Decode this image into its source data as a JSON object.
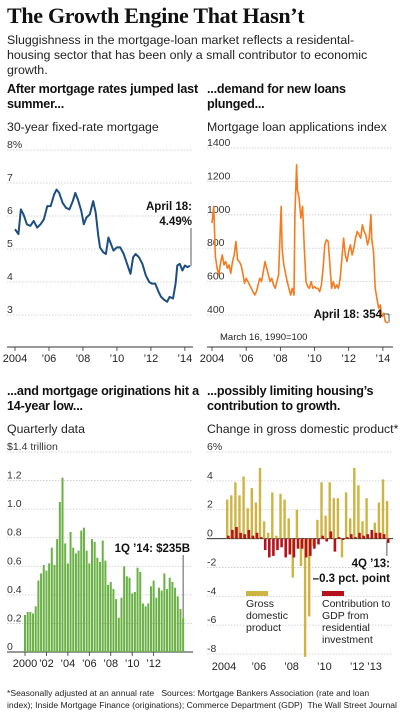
{
  "header": {
    "title": "The Growth Engine That Hasn’t",
    "subtitle": "Sluggishness in the mortgage-loan market reflects a residental-housing sector that has been only a small contributor to economic growth."
  },
  "colors": {
    "rate": "#1c4e80",
    "applications": "#f47c20",
    "originations": "#69b144",
    "gdp": "#cdb443",
    "residential": "#b5121b",
    "grid": "#c8c8c8"
  },
  "footer": {
    "note": "*Seasonally adjusted at an annual rate",
    "sources": "Sources: Mortgage Bankers Association (rate and loan index); Inside Mortgage Finance (originations); Commerce Department (GDP)",
    "credit": "The Wall Street Journal"
  },
  "chart_data": [
    {
      "type": "line",
      "headline": "After mortgage rates jumped last summer...",
      "subtitle": "30-year fixed-rate mortgage",
      "x_ticks": [
        "2004",
        "’06",
        "’08",
        "’10",
        "’12",
        "’14"
      ],
      "y_ticks": [
        "8%",
        "7",
        "6",
        "5",
        "4",
        "3"
      ],
      "ylim": [
        3,
        8
      ],
      "xlim": [
        2004,
        2014.3
      ],
      "annotation": {
        "label": "April 18:",
        "value": "4.49%",
        "x": 2014.3,
        "y": 4.49
      },
      "points": [
        [
          2004.0,
          5.6
        ],
        [
          2004.2,
          5.45
        ],
        [
          2004.35,
          6.2
        ],
        [
          2004.5,
          6.05
        ],
        [
          2004.7,
          5.75
        ],
        [
          2004.9,
          5.7
        ],
        [
          2005.1,
          5.85
        ],
        [
          2005.3,
          5.65
        ],
        [
          2005.5,
          5.75
        ],
        [
          2005.7,
          5.9
        ],
        [
          2005.9,
          6.3
        ],
        [
          2006.1,
          6.3
        ],
        [
          2006.3,
          6.65
        ],
        [
          2006.45,
          6.8
        ],
        [
          2006.6,
          6.7
        ],
        [
          2006.8,
          6.4
        ],
        [
          2007.0,
          6.25
        ],
        [
          2007.2,
          6.2
        ],
        [
          2007.4,
          6.45
        ],
        [
          2007.55,
          6.7
        ],
        [
          2007.7,
          6.5
        ],
        [
          2007.9,
          6.15
        ],
        [
          2008.05,
          5.75
        ],
        [
          2008.2,
          5.95
        ],
        [
          2008.4,
          6.05
        ],
        [
          2008.6,
          6.45
        ],
        [
          2008.75,
          6.1
        ],
        [
          2008.9,
          5.4
        ],
        [
          2009.0,
          5.05
        ],
        [
          2009.2,
          4.9
        ],
        [
          2009.35,
          4.85
        ],
        [
          2009.5,
          5.35
        ],
        [
          2009.65,
          5.15
        ],
        [
          2009.8,
          4.95
        ],
        [
          2010.0,
          5.05
        ],
        [
          2010.2,
          5.05
        ],
        [
          2010.4,
          4.85
        ],
        [
          2010.6,
          4.55
        ],
        [
          2010.8,
          4.25
        ],
        [
          2010.95,
          4.75
        ],
        [
          2011.1,
          4.85
        ],
        [
          2011.3,
          4.75
        ],
        [
          2011.5,
          4.55
        ],
        [
          2011.7,
          4.2
        ],
        [
          2011.9,
          4.0
        ],
        [
          2012.05,
          3.95
        ],
        [
          2012.25,
          3.95
        ],
        [
          2012.45,
          3.7
        ],
        [
          2012.6,
          3.55
        ],
        [
          2012.8,
          3.45
        ],
        [
          2012.95,
          3.4
        ],
        [
          2013.1,
          3.55
        ],
        [
          2013.3,
          3.5
        ],
        [
          2013.45,
          3.95
        ],
        [
          2013.55,
          4.5
        ],
        [
          2013.7,
          4.55
        ],
        [
          2013.85,
          4.35
        ],
        [
          2014.0,
          4.5
        ],
        [
          2014.15,
          4.45
        ],
        [
          2014.3,
          4.49
        ]
      ]
    },
    {
      "type": "line",
      "headline": "...demand for new loans plunged...",
      "subtitle": "Mortgage loan applications index",
      "x_ticks": [
        "2004",
        "’06",
        "’08",
        "’10",
        "’12",
        "’14"
      ],
      "y_ticks": [
        "1400",
        "1200",
        "1000",
        "800",
        "600",
        "400"
      ],
      "ylim": [
        290,
        1400
      ],
      "xlim": [
        2004,
        2014.3
      ],
      "base_note": "March 16, 1990=100",
      "annotation": {
        "label": "April 18: 354",
        "x": 2014.3,
        "y": 354
      },
      "points": [
        [
          2004.0,
          950
        ],
        [
          2004.1,
          1050
        ],
        [
          2004.2,
          750
        ],
        [
          2004.3,
          680
        ],
        [
          2004.4,
          640
        ],
        [
          2004.5,
          710
        ],
        [
          2004.6,
          760
        ],
        [
          2004.7,
          700
        ],
        [
          2004.8,
          720
        ],
        [
          2004.9,
          680
        ],
        [
          2005.0,
          700
        ],
        [
          2005.1,
          650
        ],
        [
          2005.2,
          720
        ],
        [
          2005.3,
          760
        ],
        [
          2005.4,
          840
        ],
        [
          2005.5,
          730
        ],
        [
          2005.6,
          720
        ],
        [
          2005.7,
          700
        ],
        [
          2005.8,
          650
        ],
        [
          2005.9,
          590
        ],
        [
          2006.0,
          620
        ],
        [
          2006.1,
          600
        ],
        [
          2006.2,
          580
        ],
        [
          2006.3,
          560
        ],
        [
          2006.4,
          540
        ],
        [
          2006.5,
          520
        ],
        [
          2006.6,
          540
        ],
        [
          2006.7,
          580
        ],
        [
          2006.8,
          620
        ],
        [
          2006.9,
          600
        ],
        [
          2007.0,
          660
        ],
        [
          2007.1,
          720
        ],
        [
          2007.2,
          680
        ],
        [
          2007.3,
          640
        ],
        [
          2007.4,
          600
        ],
        [
          2007.5,
          620
        ],
        [
          2007.6,
          580
        ],
        [
          2007.7,
          560
        ],
        [
          2007.8,
          600
        ],
        [
          2007.9,
          640
        ],
        [
          2008.0,
          920
        ],
        [
          2008.05,
          1050
        ],
        [
          2008.1,
          800
        ],
        [
          2008.2,
          700
        ],
        [
          2008.3,
          650
        ],
        [
          2008.4,
          600
        ],
        [
          2008.5,
          560
        ],
        [
          2008.6,
          520
        ],
        [
          2008.7,
          560
        ],
        [
          2008.8,
          520
        ],
        [
          2008.85,
          1000
        ],
        [
          2008.95,
          1300
        ],
        [
          2009.0,
          1150
        ],
        [
          2009.1,
          1100
        ],
        [
          2009.2,
          980
        ],
        [
          2009.3,
          1050
        ],
        [
          2009.4,
          800
        ],
        [
          2009.5,
          600
        ],
        [
          2009.6,
          570
        ],
        [
          2009.7,
          560
        ],
        [
          2009.8,
          600
        ],
        [
          2009.9,
          560
        ],
        [
          2010.0,
          570
        ],
        [
          2010.1,
          560
        ],
        [
          2010.2,
          560
        ],
        [
          2010.3,
          540
        ],
        [
          2010.4,
          580
        ],
        [
          2010.5,
          680
        ],
        [
          2010.6,
          820
        ],
        [
          2010.7,
          850
        ],
        [
          2010.8,
          840
        ],
        [
          2010.9,
          700
        ],
        [
          2011.0,
          560
        ],
        [
          2011.1,
          600
        ],
        [
          2011.2,
          560
        ],
        [
          2011.3,
          580
        ],
        [
          2011.4,
          560
        ],
        [
          2011.5,
          620
        ],
        [
          2011.6,
          740
        ],
        [
          2011.7,
          860
        ],
        [
          2011.8,
          760
        ],
        [
          2011.9,
          720
        ],
        [
          2012.0,
          780
        ],
        [
          2012.1,
          820
        ],
        [
          2012.2,
          760
        ],
        [
          2012.3,
          800
        ],
        [
          2012.4,
          860
        ],
        [
          2012.5,
          900
        ],
        [
          2012.6,
          880
        ],
        [
          2012.7,
          860
        ],
        [
          2012.8,
          940
        ],
        [
          2012.9,
          900
        ],
        [
          2013.0,
          880
        ],
        [
          2013.1,
          820
        ],
        [
          2013.2,
          860
        ],
        [
          2013.3,
          1000
        ],
        [
          2013.35,
          850
        ],
        [
          2013.45,
          780
        ],
        [
          2013.55,
          560
        ],
        [
          2013.65,
          500
        ],
        [
          2013.75,
          440
        ],
        [
          2013.85,
          460
        ],
        [
          2013.95,
          390
        ],
        [
          2014.05,
          410
        ],
        [
          2014.15,
          360
        ],
        [
          2014.3,
          354
        ]
      ]
    },
    {
      "type": "bar",
      "headline": "...and mortgage originations hit a 14-year low...",
      "subtitle": "Quarterly data",
      "x_ticks": [
        "2000",
        "’02",
        "’04",
        "’06",
        "’08",
        "’10",
        "’12"
      ],
      "y_ticks": [
        "$1.4 trillion",
        "1.2",
        "1.0",
        "0.8",
        "0.6",
        "0.4",
        "0.2",
        "0"
      ],
      "ylim": [
        0,
        1.4
      ],
      "annotation": {
        "label": "1Q ’14: $235B",
        "value": 0.235
      },
      "values": [
        0.26,
        0.28,
        0.28,
        0.27,
        0.32,
        0.5,
        0.55,
        0.61,
        0.57,
        0.62,
        0.73,
        0.61,
        0.79,
        1.05,
        1.22,
        0.76,
        0.62,
        0.84,
        0.73,
        0.69,
        0.71,
        0.85,
        0.87,
        0.71,
        0.62,
        0.79,
        0.77,
        0.66,
        0.63,
        0.78,
        0.64,
        0.47,
        0.49,
        0.44,
        0.37,
        0.24,
        0.38,
        0.6,
        0.53,
        0.52,
        0.41,
        0.42,
        0.59,
        0.56,
        0.34,
        0.32,
        0.34,
        0.46,
        0.5,
        0.38,
        0.45,
        0.43,
        0.55,
        0.44,
        0.52,
        0.49,
        0.45,
        0.39,
        0.3,
        0.235
      ]
    },
    {
      "type": "bar",
      "headline": "...possibly limiting housing’s contribution to growth.",
      "subtitle": "Change in gross domestic product*",
      "x_ticks": [
        "2004",
        "’06",
        "’08",
        "’10",
        "’12",
        "’13"
      ],
      "y_ticks": [
        "6%",
        "4",
        "2",
        "0",
        "-2",
        "-4",
        "-6",
        "-8"
      ],
      "ylim": [
        -8,
        6
      ],
      "annotation": {
        "label": "4Q ’13:",
        "value": "–0.3 pct. point"
      },
      "series": [
        {
          "name": "Gross domestic product",
          "values": [
            2.7,
            3.0,
            3.9,
            3.0,
            4.3,
            2.1,
            3.5,
            2.5,
            4.9,
            1.2,
            0.4,
            3.2,
            0.2,
            3.1,
            2.7,
            1.4,
            -2.7,
            2.0,
            -1.9,
            -8.2,
            -5.4,
            -0.5,
            1.3,
            3.9,
            1.6,
            3.9,
            2.8,
            2.8,
            -1.3,
            3.2,
            1.4,
            4.9,
            3.7,
            1.2,
            2.8,
            0.1,
            1.1,
            2.5,
            4.1,
            2.6
          ]
        },
        {
          "name": "Contribution to GDP from residential investment",
          "values": [
            0.2,
            0.6,
            0.8,
            0.4,
            0.3,
            0.6,
            0.2,
            0.4,
            0.1,
            -0.8,
            -1.3,
            -1.2,
            -0.8,
            -0.6,
            -1.3,
            -1.1,
            -1.3,
            -0.7,
            -0.7,
            -1.3,
            -1.2,
            -0.7,
            -0.4,
            0.2,
            -0.2,
            0.5,
            -0.9,
            0.1,
            -0.1,
            0.1,
            0.3,
            0.1,
            0.4,
            0.2,
            0.3,
            0.6,
            0.4,
            0.4,
            0.3,
            -0.3
          ]
        }
      ]
    }
  ]
}
